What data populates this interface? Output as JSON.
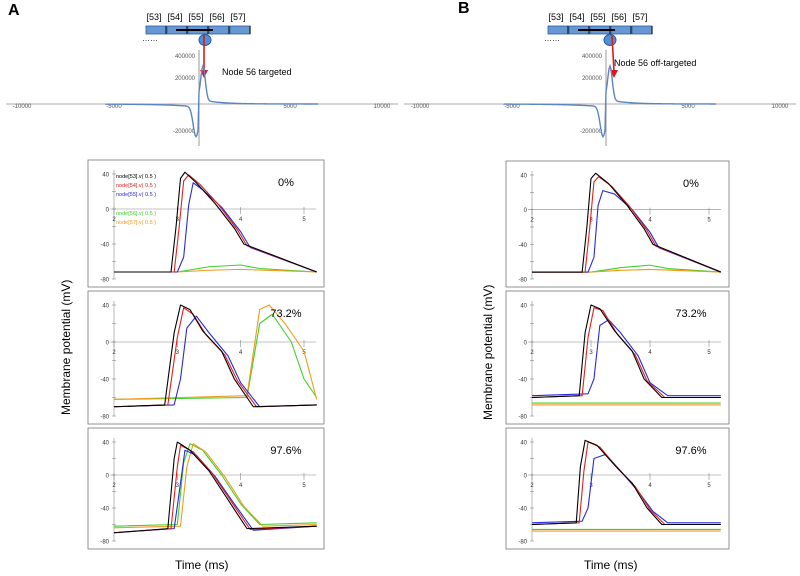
{
  "panel_A": {
    "letter": "A",
    "node_labels": [
      "[53]",
      "[54]",
      "[55]",
      "[56]",
      "[57]"
    ],
    "field_caption": "Node 56 targeted",
    "field_ticks_x": [
      "-10000",
      "-5000",
      "5000",
      "10000"
    ],
    "field_ticks_y": [
      "400000",
      "200000",
      "-200000"
    ],
    "ylabel": "Membrane potential (mV)",
    "xlabel": "Time (ms)",
    "plots": [
      {
        "percent": "0%",
        "legend": [
          {
            "text": "node[53].v( 0.5 )",
            "color": "#000000"
          },
          {
            "text": "node[54].v( 0.5 )",
            "color": "#e0201c"
          },
          {
            "text": "node[55].v( 0.5 )",
            "color": "#2a2adc"
          },
          {
            "text": "node[56].v( 0.5 )",
            "color": "#3fd12a"
          },
          {
            "text": "node[57].v( 0.5 )",
            "color": "#f29a1d"
          }
        ]
      },
      {
        "percent": "73.2%",
        "legend": []
      },
      {
        "percent": "97.6%",
        "legend": []
      }
    ]
  },
  "panel_B": {
    "letter": "B",
    "node_labels": [
      "[53]",
      "[54]",
      "[55]",
      "[56]",
      "[57]"
    ],
    "field_caption": "Node 56 off-targeted",
    "field_ticks_x": [
      "-10000",
      "-5000",
      "5000",
      "10000"
    ],
    "field_ticks_y": [
      "400000",
      "200000",
      "-200000"
    ],
    "ylabel": "Membrane potential (mV)",
    "xlabel": "Time (ms)",
    "plots": [
      {
        "percent": "0%",
        "legend": []
      },
      {
        "percent": "73.2%",
        "legend": []
      },
      {
        "percent": "97.6%",
        "legend": []
      }
    ]
  },
  "chart_data": [
    {
      "type": "line",
      "title": "A — 0%",
      "xlabel": "Time (ms)",
      "ylabel": "Membrane potential (mV)",
      "xlim": [
        2,
        5
      ],
      "ylim": [
        -80,
        40
      ],
      "x_ticks": [
        "2",
        "3",
        "4",
        "5"
      ],
      "y_ticks": [
        "40",
        "20",
        "0",
        "-20",
        "-40",
        "-60",
        "-80"
      ],
      "series": [
        {
          "name": "node[53].v( 0.5 )",
          "color": "#000000",
          "x": [
            2,
            2.9,
            2.98,
            3.05,
            3.12,
            3.3,
            3.6,
            3.9,
            4.05,
            5.2
          ],
          "values": [
            -72,
            -72,
            -20,
            35,
            42,
            30,
            6,
            -22,
            -40,
            -72
          ]
        },
        {
          "name": "node[54].v( 0.5 )",
          "color": "#e0201c",
          "x": [
            2,
            2.95,
            3.03,
            3.1,
            3.18,
            3.36,
            3.65,
            3.95,
            4.1,
            5.2
          ],
          "values": [
            -72,
            -72,
            -20,
            32,
            39,
            28,
            5,
            -24,
            -42,
            -72
          ]
        },
        {
          "name": "node[55].v( 0.5 )",
          "color": "#2a2adc",
          "x": [
            2,
            3.0,
            3.1,
            3.18,
            3.25,
            3.4,
            3.7,
            4.0,
            4.15,
            5.2
          ],
          "values": [
            -72,
            -72,
            -55,
            5,
            30,
            22,
            2,
            -26,
            -44,
            -72
          ]
        },
        {
          "name": "node[56].v( 0.5 )",
          "color": "#3fd12a",
          "x": [
            2,
            3.0,
            3.5,
            4.0,
            4.3,
            5.2
          ],
          "values": [
            -72,
            -72,
            -66,
            -64,
            -68,
            -72
          ]
        },
        {
          "name": "node[57].v( 0.5 )",
          "color": "#f29a1d",
          "x": [
            2,
            3.0,
            3.5,
            4.0,
            5.2
          ],
          "values": [
            -72,
            -72,
            -70,
            -69,
            -72
          ]
        }
      ]
    },
    {
      "type": "line",
      "title": "A — 73.2%",
      "xlabel": "Time (ms)",
      "ylabel": "Membrane potential (mV)",
      "xlim": [
        2,
        5
      ],
      "ylim": [
        -80,
        40
      ],
      "x_ticks": [
        "2",
        "3",
        "4",
        "5"
      ],
      "y_ticks": [
        "40",
        "20",
        "0",
        "-20",
        "-40",
        "-60",
        "-80"
      ],
      "series": [
        {
          "name": "node[53].v( 0.5 )",
          "color": "#000000",
          "x": [
            2,
            2.8,
            2.95,
            3.05,
            3.2,
            3.4,
            3.7,
            3.9,
            4.2,
            5.2
          ],
          "values": [
            -70,
            -68,
            10,
            40,
            35,
            12,
            -10,
            -40,
            -70,
            -68
          ]
        },
        {
          "name": "node[54].v( 0.5 )",
          "color": "#e0201c",
          "x": [
            2,
            2.85,
            3.0,
            3.1,
            3.25,
            3.45,
            3.75,
            3.95,
            4.25,
            5.2
          ],
          "values": [
            -70,
            -68,
            5,
            37,
            30,
            8,
            -14,
            -42,
            -70,
            -68
          ]
        },
        {
          "name": "node[55].v( 0.5 )",
          "color": "#2a2adc",
          "x": [
            2,
            2.95,
            3.05,
            3.15,
            3.3,
            3.5,
            3.8,
            4.0,
            4.3,
            5.2
          ],
          "values": [
            -70,
            -68,
            -40,
            15,
            28,
            10,
            -15,
            -44,
            -70,
            -68
          ]
        },
        {
          "name": "node[56].v( 0.5 )",
          "color": "#3fd12a",
          "x": [
            2,
            4.1,
            4.3,
            4.5,
            4.8,
            5.0,
            5.2
          ],
          "values": [
            -62,
            -60,
            20,
            30,
            0,
            -40,
            -60
          ]
        },
        {
          "name": "node[57].v( 0.5 )",
          "color": "#f29a1d",
          "x": [
            2,
            4.1,
            4.3,
            4.45,
            4.7,
            5.0,
            5.2
          ],
          "values": [
            -62,
            -58,
            35,
            40,
            20,
            -10,
            -62
          ]
        }
      ]
    },
    {
      "type": "line",
      "title": "A — 97.6%",
      "xlabel": "Time (ms)",
      "ylabel": "Membrane potential (mV)",
      "xlim": [
        2,
        5
      ],
      "ylim": [
        -80,
        40
      ],
      "x_ticks": [
        "2",
        "3",
        "4",
        "5"
      ],
      "y_ticks": [
        "40",
        "20",
        "0",
        "-20",
        "-40",
        "-60",
        "-80"
      ],
      "series": [
        {
          "name": "node[53].v( 0.5 )",
          "color": "#000000",
          "x": [
            2,
            2.85,
            2.95,
            3.0,
            3.2,
            3.5,
            3.8,
            4.1,
            5.2
          ],
          "values": [
            -70,
            -65,
            20,
            40,
            30,
            5,
            -30,
            -65,
            -62
          ]
        },
        {
          "name": "node[54].v( 0.5 )",
          "color": "#e0201c",
          "x": [
            2,
            2.9,
            3.0,
            3.05,
            3.25,
            3.55,
            3.85,
            4.15,
            5.2
          ],
          "values": [
            -70,
            -65,
            10,
            36,
            28,
            2,
            -32,
            -66,
            -62
          ]
        },
        {
          "name": "node[55].v( 0.5 )",
          "color": "#2a2adc",
          "x": [
            2,
            2.95,
            3.05,
            3.12,
            3.3,
            3.6,
            3.9,
            4.2,
            5.2
          ],
          "values": [
            -70,
            -65,
            -10,
            30,
            24,
            -2,
            -35,
            -67,
            -62
          ]
        },
        {
          "name": "node[56].v( 0.5 )",
          "color": "#3fd12a",
          "x": [
            2,
            3.0,
            3.1,
            3.2,
            3.4,
            3.7,
            4.0,
            4.3,
            5.2
          ],
          "values": [
            -62,
            -60,
            15,
            38,
            30,
            0,
            -35,
            -60,
            -58
          ]
        },
        {
          "name": "node[57].v( 0.5 )",
          "color": "#f29a1d",
          "x": [
            2,
            3.05,
            3.15,
            3.25,
            3.45,
            3.75,
            4.05,
            4.35,
            5.2
          ],
          "values": [
            -64,
            -62,
            10,
            38,
            28,
            -2,
            -38,
            -62,
            -60
          ]
        }
      ]
    },
    {
      "type": "line",
      "title": "B — 0%",
      "xlabel": "Time (ms)",
      "ylabel": "Membrane potential (mV)",
      "xlim": [
        2,
        5
      ],
      "ylim": [
        -80,
        40
      ],
      "x_ticks": [
        "2",
        "3",
        "4",
        "5"
      ],
      "y_ticks": [
        "40",
        "20",
        "0",
        "-20",
        "-40",
        "-60",
        "-80"
      ],
      "series": [
        {
          "name": "node[53].v( 0.5 )",
          "color": "#000000",
          "x": [
            2,
            2.85,
            2.93,
            3.0,
            3.08,
            3.3,
            3.6,
            3.9,
            4.05,
            5.2
          ],
          "values": [
            -72,
            -72,
            -20,
            36,
            42,
            30,
            6,
            -22,
            -40,
            -72
          ]
        },
        {
          "name": "node[54].v( 0.5 )",
          "color": "#e0201c",
          "x": [
            2,
            2.9,
            2.98,
            3.05,
            3.13,
            3.35,
            3.65,
            3.95,
            4.1,
            5.2
          ],
          "values": [
            -72,
            -72,
            -20,
            32,
            38,
            27,
            4,
            -24,
            -42,
            -72
          ]
        },
        {
          "name": "node[55].v( 0.5 )",
          "color": "#2a2adc",
          "x": [
            2,
            2.95,
            3.05,
            3.12,
            3.2,
            3.4,
            3.7,
            4.0,
            4.15,
            5.2
          ],
          "values": [
            -72,
            -72,
            -55,
            5,
            22,
            18,
            0,
            -26,
            -44,
            -72
          ]
        },
        {
          "name": "node[56].v( 0.5 )",
          "color": "#3fd12a",
          "x": [
            2,
            3.0,
            3.5,
            4.0,
            4.3,
            5.2
          ],
          "values": [
            -72,
            -72,
            -67,
            -64,
            -68,
            -72
          ]
        },
        {
          "name": "node[57].v( 0.5 )",
          "color": "#f29a1d",
          "x": [
            2,
            3.0,
            3.5,
            4.0,
            5.2
          ],
          "values": [
            -72,
            -72,
            -70,
            -69,
            -72
          ]
        }
      ]
    },
    {
      "type": "line",
      "title": "B — 73.2%",
      "xlabel": "Time (ms)",
      "ylabel": "Membrane potential (mV)",
      "xlim": [
        2,
        5
      ],
      "ylim": [
        -80,
        40
      ],
      "x_ticks": [
        "2",
        "3",
        "4",
        "5"
      ],
      "y_ticks": [
        "40",
        "20",
        "0",
        "-20",
        "-40",
        "-60",
        "-80"
      ],
      "series": [
        {
          "name": "node[53].v( 0.5 )",
          "color": "#000000",
          "x": [
            2,
            2.8,
            2.9,
            3.0,
            3.15,
            3.4,
            3.7,
            3.9,
            4.2,
            5.2
          ],
          "values": [
            -60,
            -58,
            10,
            40,
            36,
            12,
            -10,
            -40,
            -60,
            -60
          ]
        },
        {
          "name": "node[54].v( 0.5 )",
          "color": "#e0201c",
          "x": [
            2,
            2.85,
            2.95,
            3.05,
            3.2,
            3.45,
            3.75,
            3.95,
            4.25,
            5.2
          ],
          "values": [
            -60,
            -58,
            5,
            37,
            34,
            8,
            -14,
            -42,
            -60,
            -60
          ]
        },
        {
          "name": "node[55].v( 0.5 )",
          "color": "#2a2adc",
          "x": [
            2,
            2.95,
            3.05,
            3.15,
            3.3,
            3.5,
            3.8,
            4.0,
            4.3,
            5.2
          ],
          "values": [
            -58,
            -56,
            -40,
            18,
            24,
            10,
            -15,
            -44,
            -58,
            -58
          ]
        },
        {
          "name": "node[56].v( 0.5 )",
          "color": "#3fd12a",
          "x": [
            2,
            5.2
          ],
          "values": [
            -66,
            -66
          ]
        },
        {
          "name": "node[57].v( 0.5 )",
          "color": "#f29a1d",
          "x": [
            2,
            5.2
          ],
          "values": [
            -68,
            -68
          ]
        }
      ]
    },
    {
      "type": "line",
      "title": "B — 97.6%",
      "xlabel": "Time (ms)",
      "ylabel": "Membrane potential (mV)",
      "xlim": [
        2,
        5
      ],
      "ylim": [
        -80,
        40
      ],
      "x_ticks": [
        "2",
        "3",
        "4",
        "5"
      ],
      "y_ticks": [
        "40",
        "20",
        "0",
        "-20",
        "-40",
        "-60",
        "-80"
      ],
      "series": [
        {
          "name": "node[53].v( 0.5 )",
          "color": "#000000",
          "x": [
            2,
            2.75,
            2.82,
            2.9,
            3.1,
            3.4,
            3.7,
            3.95,
            4.2,
            5.2
          ],
          "values": [
            -60,
            -58,
            10,
            42,
            36,
            12,
            -10,
            -40,
            -60,
            -60
          ]
        },
        {
          "name": "node[54].v( 0.5 )",
          "color": "#e0201c",
          "x": [
            2,
            2.8,
            2.88,
            2.95,
            3.15,
            3.45,
            3.75,
            4.0,
            4.25,
            5.2
          ],
          "values": [
            -60,
            -58,
            5,
            40,
            34,
            8,
            -14,
            -42,
            -60,
            -60
          ]
        },
        {
          "name": "node[55].v( 0.5 )",
          "color": "#2a2adc",
          "x": [
            2,
            2.85,
            2.95,
            3.05,
            3.25,
            3.5,
            3.8,
            4.05,
            4.3,
            5.2
          ],
          "values": [
            -58,
            -56,
            -40,
            20,
            25,
            5,
            -20,
            -44,
            -58,
            -58
          ]
        },
        {
          "name": "node[56].v( 0.5 )",
          "color": "#3fd12a",
          "x": [
            2,
            5.2
          ],
          "values": [
            -66,
            -66
          ]
        },
        {
          "name": "node[57].v( 0.5 )",
          "color": "#f29a1d",
          "x": [
            2,
            5.2
          ],
          "values": [
            -68,
            -68
          ]
        }
      ]
    }
  ]
}
